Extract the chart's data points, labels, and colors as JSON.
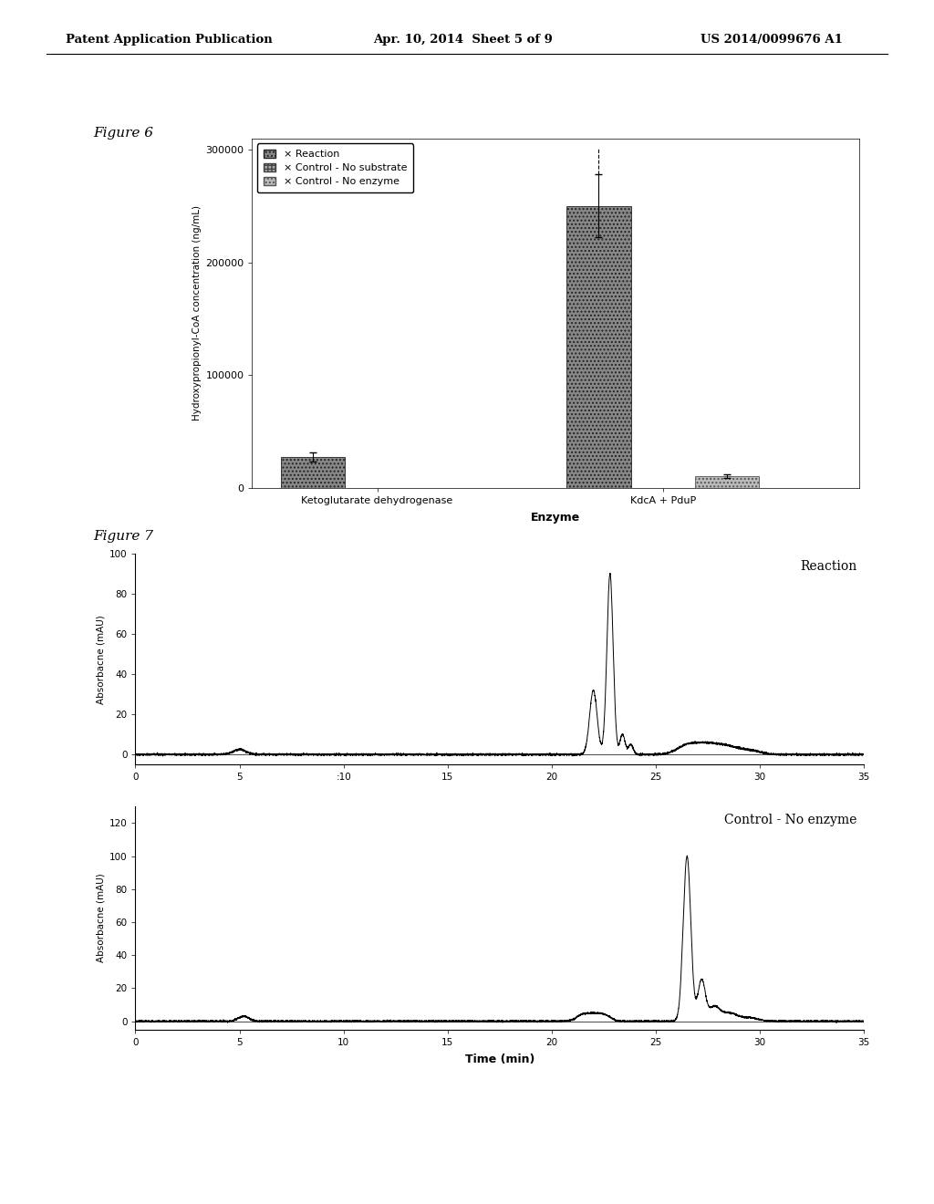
{
  "header_left": "Patent Application Publication",
  "header_mid": "Apr. 10, 2014  Sheet 5 of 9",
  "header_right": "US 2014/0099676 A1",
  "fig6_label": "Figure 6",
  "fig7_label": "Figure 7",
  "fig6": {
    "ylabel": "Hydroxypropionyl-CoA concentration (ng/mL)",
    "xlabel": "Enzyme",
    "ylim": [
      0,
      310000
    ],
    "yticks": [
      0,
      100000,
      200000,
      300000
    ],
    "yticklabels": [
      "0",
      "100000",
      "200000",
      "300000"
    ],
    "xtick_labels": [
      "Ketoglutarate dehydrogenase",
      "KdcA + PduP"
    ],
    "legend_labels": [
      "Reaction",
      "Control - No substrate",
      "Control - No enzyme"
    ],
    "groups": [
      {
        "label": "Ketoglutarate dehydrogenase",
        "reaction": 27000,
        "no_substrate": 0,
        "no_enzyme": 0,
        "reaction_err": 4000,
        "no_substrate_err": 0,
        "no_enzyme_err": 0
      },
      {
        "label": "KdcA + PduP",
        "reaction": 250000,
        "no_substrate": 0,
        "no_enzyme": 10000,
        "reaction_err": 28000,
        "no_substrate_err": 0,
        "no_enzyme_err": 1500
      }
    ]
  },
  "fig7_top": {
    "ylabel": "Absorbacne (mAU)",
    "xlabel": "",
    "title": "Reaction",
    "xlim": [
      0,
      35
    ],
    "ylim": [
      -5,
      100
    ],
    "yticks": [
      0,
      20,
      40,
      60,
      80,
      100
    ],
    "xticks": [
      0,
      5,
      10,
      15,
      20,
      25,
      30,
      35
    ],
    "xticklabels": [
      "0",
      "5",
      ":10",
      "15",
      "20",
      "25",
      "30",
      "35"
    ]
  },
  "fig7_bot": {
    "ylabel": "Absorbacne (mAU)",
    "xlabel": "Time (min)",
    "title": "Control - No enzyme",
    "xlim": [
      0,
      35
    ],
    "ylim": [
      -5,
      130
    ],
    "yticks": [
      0,
      20,
      40,
      60,
      80,
      100,
      120
    ],
    "xticks": [
      0,
      5,
      10,
      15,
      20,
      25,
      30,
      35
    ],
    "xticklabels": [
      "0",
      "5",
      "10",
      "15",
      "20",
      "25",
      "30",
      "35"
    ]
  },
  "bg_color": "#ffffff",
  "text_color": "#000000"
}
